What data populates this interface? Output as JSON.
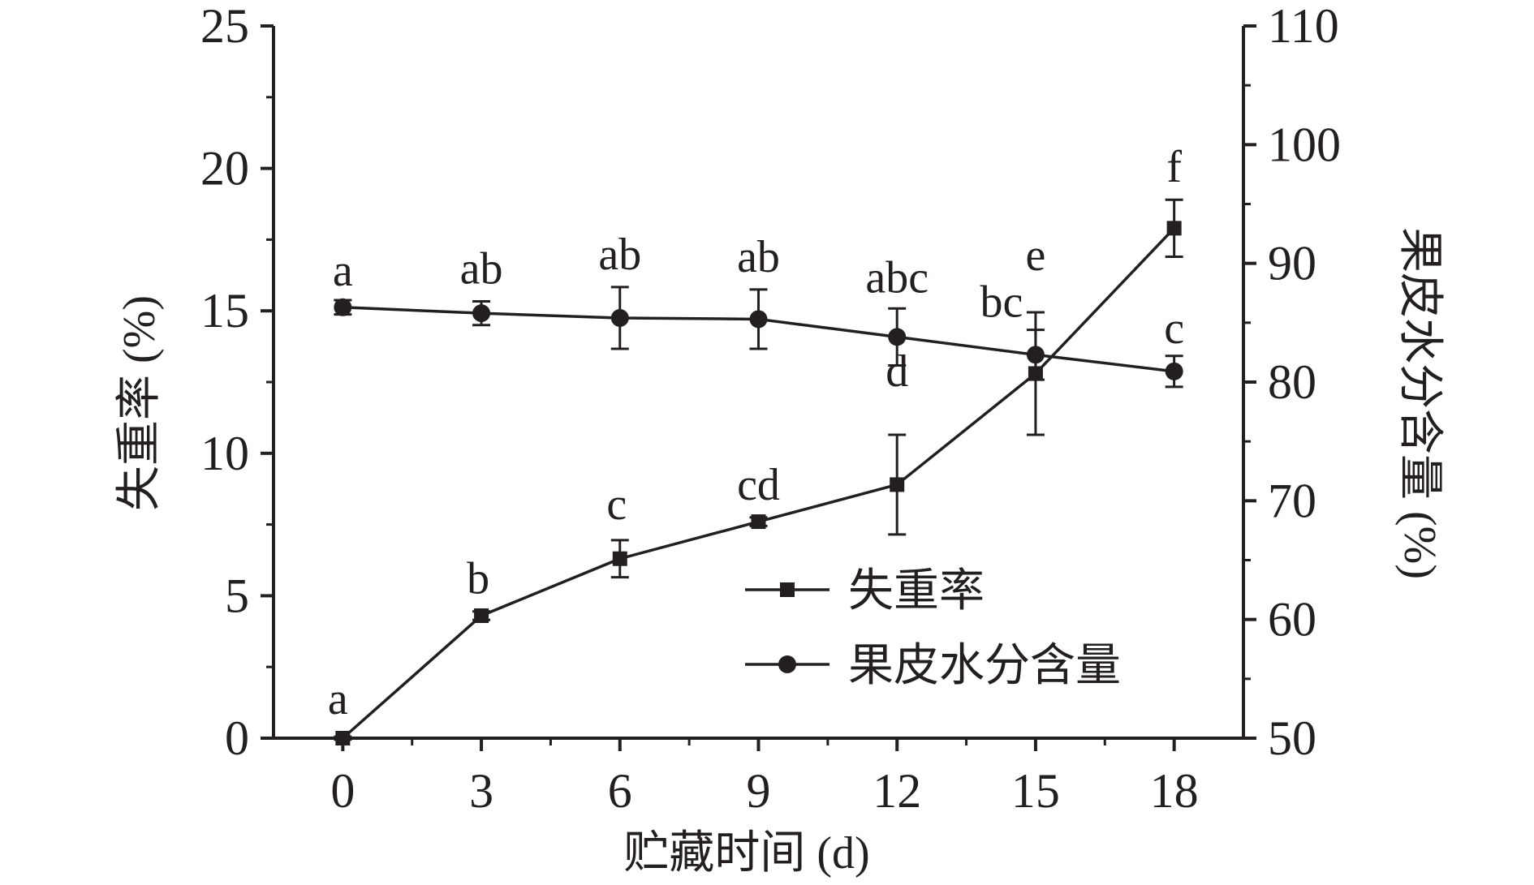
{
  "colors": {
    "ink": "#231f20",
    "background": "#ffffff"
  },
  "chart_data": {
    "type": "line",
    "xlabel": "贮藏时间 (d)",
    "ylabel_left": "失重率 (%)",
    "ylabel_right": "果皮水分含量 (%)",
    "x": [
      0,
      3,
      6,
      9,
      12,
      15,
      18
    ],
    "x_ticks": [
      "0",
      "3",
      "6",
      "9",
      "12",
      "15",
      "18"
    ],
    "xlim": [
      -1.5,
      19.5
    ],
    "ylim_left": [
      0,
      25
    ],
    "ylim_right": [
      50,
      110
    ],
    "y_ticks_left": [
      "0",
      "5",
      "10",
      "15",
      "20",
      "25"
    ],
    "y_ticks_right": [
      "50",
      "60",
      "70",
      "80",
      "90",
      "100",
      "110"
    ],
    "legend_placement": "bottom-right",
    "series": [
      {
        "name": "失重率",
        "axis": "left",
        "marker": "square",
        "values": [
          0,
          4.3,
          6.3,
          7.6,
          8.9,
          12.8,
          17.9
        ],
        "errors": [
          0.05,
          0.15,
          0.65,
          0.15,
          1.75,
          2.15,
          1.0
        ],
        "labels": [
          "a",
          "b",
          "c",
          "cd",
          "d",
          "e",
          "f"
        ]
      },
      {
        "name": "果皮水分含量",
        "axis": "right",
        "marker": "circle",
        "values": [
          86.3,
          85.8,
          85.4,
          85.3,
          83.8,
          82.3,
          80.9
        ],
        "errors": [
          0.6,
          1.0,
          2.6,
          2.5,
          2.4,
          2.1,
          1.3
        ],
        "labels": [
          "a",
          "ab",
          "ab",
          "ab",
          "abc",
          "bc",
          "c"
        ]
      }
    ]
  }
}
